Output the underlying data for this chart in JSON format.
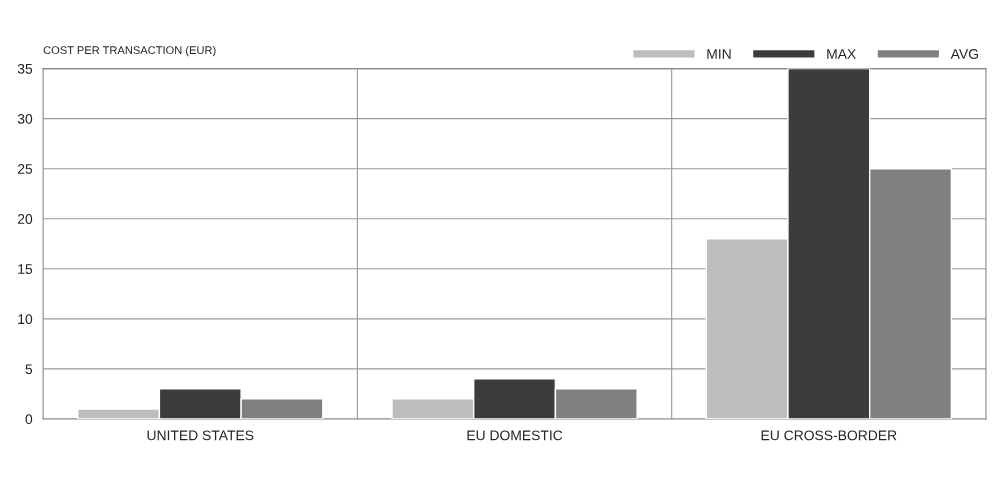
{
  "chart_data": {
    "type": "bar",
    "ylabel": "COST PER TRANSACTION (EUR)",
    "categories": [
      "UNITED STATES",
      "EU DOMESTIC",
      "EU CROSS-BORDER"
    ],
    "series": [
      {
        "name": "MIN",
        "color": "#bdbdbd",
        "values": [
          1,
          2,
          18
        ]
      },
      {
        "name": "MAX",
        "color": "#3c3c3c",
        "values": [
          3,
          4,
          35
        ]
      },
      {
        "name": "AVG",
        "color": "#808083",
        "values": [
          2,
          3,
          25
        ]
      }
    ],
    "ylim": [
      0,
      35
    ],
    "yticks": [
      0,
      5,
      10,
      15,
      20,
      25,
      30,
      35
    ],
    "grid": true,
    "legend": "top right"
  }
}
